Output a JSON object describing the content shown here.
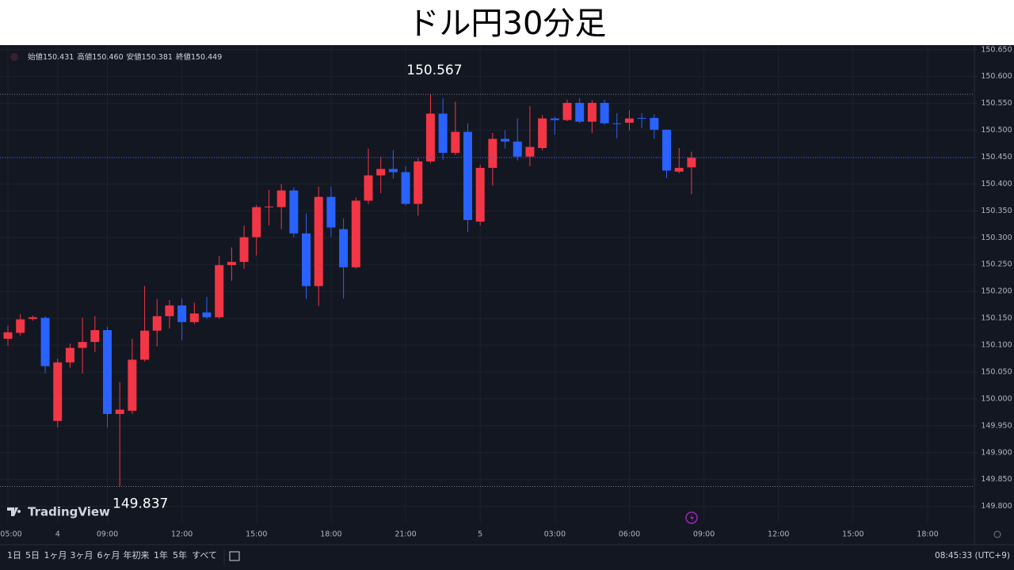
{
  "chart_data": {
    "type": "candlestick",
    "title": "ドル円30分足",
    "categories": [
      "05:00",
      null,
      null,
      null,
      "4",
      null,
      null,
      null,
      "09:00",
      null,
      null,
      null,
      null,
      null,
      "12:00",
      null,
      null,
      null,
      null,
      null,
      "15:00",
      null,
      null,
      null,
      null,
      null,
      "18:00",
      null,
      null,
      null,
      null,
      null,
      "21:00",
      null,
      null,
      null,
      null,
      null,
      "5",
      null,
      null,
      null,
      null,
      null,
      "03:00",
      null,
      null,
      null,
      null,
      null,
      "06:00",
      null,
      null,
      null,
      null,
      null,
      "09:00",
      null,
      null,
      null,
      null,
      null,
      "12:00",
      null,
      null,
      null,
      null,
      null,
      "15:00",
      null,
      null,
      null,
      null,
      null,
      "18:00"
    ],
    "open": [
      150.112,
      150.123,
      150.149,
      150.151,
      149.959,
      150.068,
      150.095,
      150.106,
      150.128,
      149.972,
      149.978,
      150.073,
      150.127,
      150.154,
      150.174,
      150.143,
      150.161,
      150.152,
      150.249,
      150.255,
      150.301,
      150.357,
      150.357,
      150.388,
      150.308,
      150.21,
      150.376,
      150.316,
      150.245,
      150.369,
      150.416,
      150.428,
      150.422,
      150.363,
      150.442,
      150.531,
      150.458,
      150.497,
      150.33,
      150.43,
      150.484,
      150.479,
      150.451,
      150.467,
      150.522,
      150.519,
      150.551,
      150.516,
      150.551,
      150.513,
      150.514,
      150.523,
      150.523,
      150.501,
      150.423,
      150.431,
      null,
      null,
      null,
      null,
      null,
      null,
      null,
      null,
      null,
      null,
      null,
      null,
      null,
      null,
      null,
      null,
      null,
      null,
      null
    ],
    "high": [
      150.136,
      150.158,
      150.155,
      150.154,
      150.075,
      150.103,
      150.151,
      150.154,
      150.134,
      150.031,
      150.112,
      150.21,
      150.186,
      150.184,
      150.187,
      150.179,
      150.19,
      150.266,
      150.282,
      150.323,
      150.361,
      150.389,
      150.4,
      150.394,
      150.345,
      150.395,
      150.395,
      150.336,
      150.375,
      150.466,
      150.451,
      150.463,
      150.433,
      150.448,
      150.567,
      150.56,
      150.553,
      150.513,
      150.436,
      150.495,
      150.5,
      150.522,
      150.545,
      150.528,
      150.525,
      150.557,
      150.56,
      150.556,
      150.557,
      150.532,
      150.537,
      150.532,
      150.529,
      150.501,
      150.467,
      150.46,
      null,
      null,
      null,
      null,
      null,
      null,
      null,
      null,
      null,
      null,
      null,
      null,
      null,
      null,
      null,
      null,
      null,
      null,
      null
    ],
    "low": [
      150.099,
      150.118,
      150.146,
      150.047,
      149.947,
      150.058,
      150.047,
      150.087,
      149.947,
      149.837,
      149.972,
      150.07,
      150.098,
      150.131,
      150.109,
      150.139,
      150.149,
      150.149,
      150.22,
      150.242,
      150.267,
      150.323,
      150.316,
      150.301,
      150.186,
      150.173,
      150.301,
      150.187,
      150.242,
      150.363,
      150.383,
      150.41,
      150.36,
      150.341,
      150.438,
      150.445,
      150.454,
      150.311,
      150.323,
      150.397,
      150.466,
      150.444,
      150.433,
      150.463,
      150.492,
      150.517,
      150.513,
      150.495,
      150.51,
      150.485,
      150.5,
      150.504,
      150.484,
      150.411,
      150.42,
      150.381,
      null,
      null,
      null,
      null,
      null,
      null,
      null,
      null,
      null,
      null,
      null,
      null,
      null,
      null,
      null,
      null,
      null,
      null,
      null
    ],
    "close": [
      150.124,
      150.148,
      150.152,
      150.061,
      150.068,
      150.095,
      150.106,
      150.128,
      149.972,
      149.98,
      150.073,
      150.127,
      150.154,
      150.174,
      150.143,
      150.159,
      150.152,
      150.249,
      150.255,
      150.301,
      150.357,
      150.358,
      150.388,
      150.308,
      150.21,
      150.376,
      150.319,
      150.245,
      150.369,
      150.416,
      150.428,
      150.422,
      150.363,
      150.442,
      150.531,
      150.458,
      150.497,
      150.333,
      150.43,
      150.484,
      150.479,
      150.451,
      150.469,
      150.522,
      150.519,
      150.551,
      150.516,
      150.551,
      150.513,
      150.512,
      150.522,
      150.522,
      150.501,
      150.425,
      150.43,
      150.449,
      null,
      null,
      null,
      null,
      null,
      null,
      null,
      null,
      null,
      null,
      null,
      null,
      null,
      null,
      null,
      null,
      null,
      null,
      null
    ],
    "up_color": "#f23645",
    "down_color": "#2962ff",
    "ylim": [
      149.77,
      150.657
    ],
    "yticks": [
      {
        "value": 149.8,
        "label": "149.800"
      },
      {
        "value": 149.85,
        "label": "149.850"
      },
      {
        "value": 149.9,
        "label": "149.900"
      },
      {
        "value": 149.95,
        "label": "149.950"
      },
      {
        "value": 150.0,
        "label": "150.000"
      },
      {
        "value": 150.05,
        "label": "150.050"
      },
      {
        "value": 150.1,
        "label": "150.100"
      },
      {
        "value": 150.15,
        "label": "150.150"
      },
      {
        "value": 150.2,
        "label": "150.200"
      },
      {
        "value": 150.25,
        "label": "150.250"
      },
      {
        "value": 150.3,
        "label": "150.300"
      },
      {
        "value": 150.35,
        "label": "150.350"
      },
      {
        "value": 150.4,
        "label": "150.400"
      },
      {
        "value": 150.45,
        "label": "150.450"
      },
      {
        "value": 150.5,
        "label": "150.500"
      },
      {
        "value": 150.55,
        "label": "150.550"
      },
      {
        "value": 150.6,
        "label": "150.600"
      },
      {
        "value": 150.65,
        "label": "150.650"
      }
    ],
    "grid": true,
    "annotations": [
      150.567,
      149.837
    ]
  },
  "ohlc_legend": [
    {
      "label": "始値",
      "value": "150.431"
    },
    {
      "label": "高値",
      "value": "150.460"
    },
    {
      "label": "安値",
      "value": "150.381"
    },
    {
      "label": "終値",
      "value": "150.449"
    }
  ],
  "watermark": "TradingView",
  "range_buttons": [
    "1日",
    "5日",
    "1ヶ月",
    "3ヶ月",
    "6ヶ月",
    "年初来",
    "1年",
    "5年",
    "すべて"
  ],
  "clock": "08:45:33 (UTC+9)"
}
